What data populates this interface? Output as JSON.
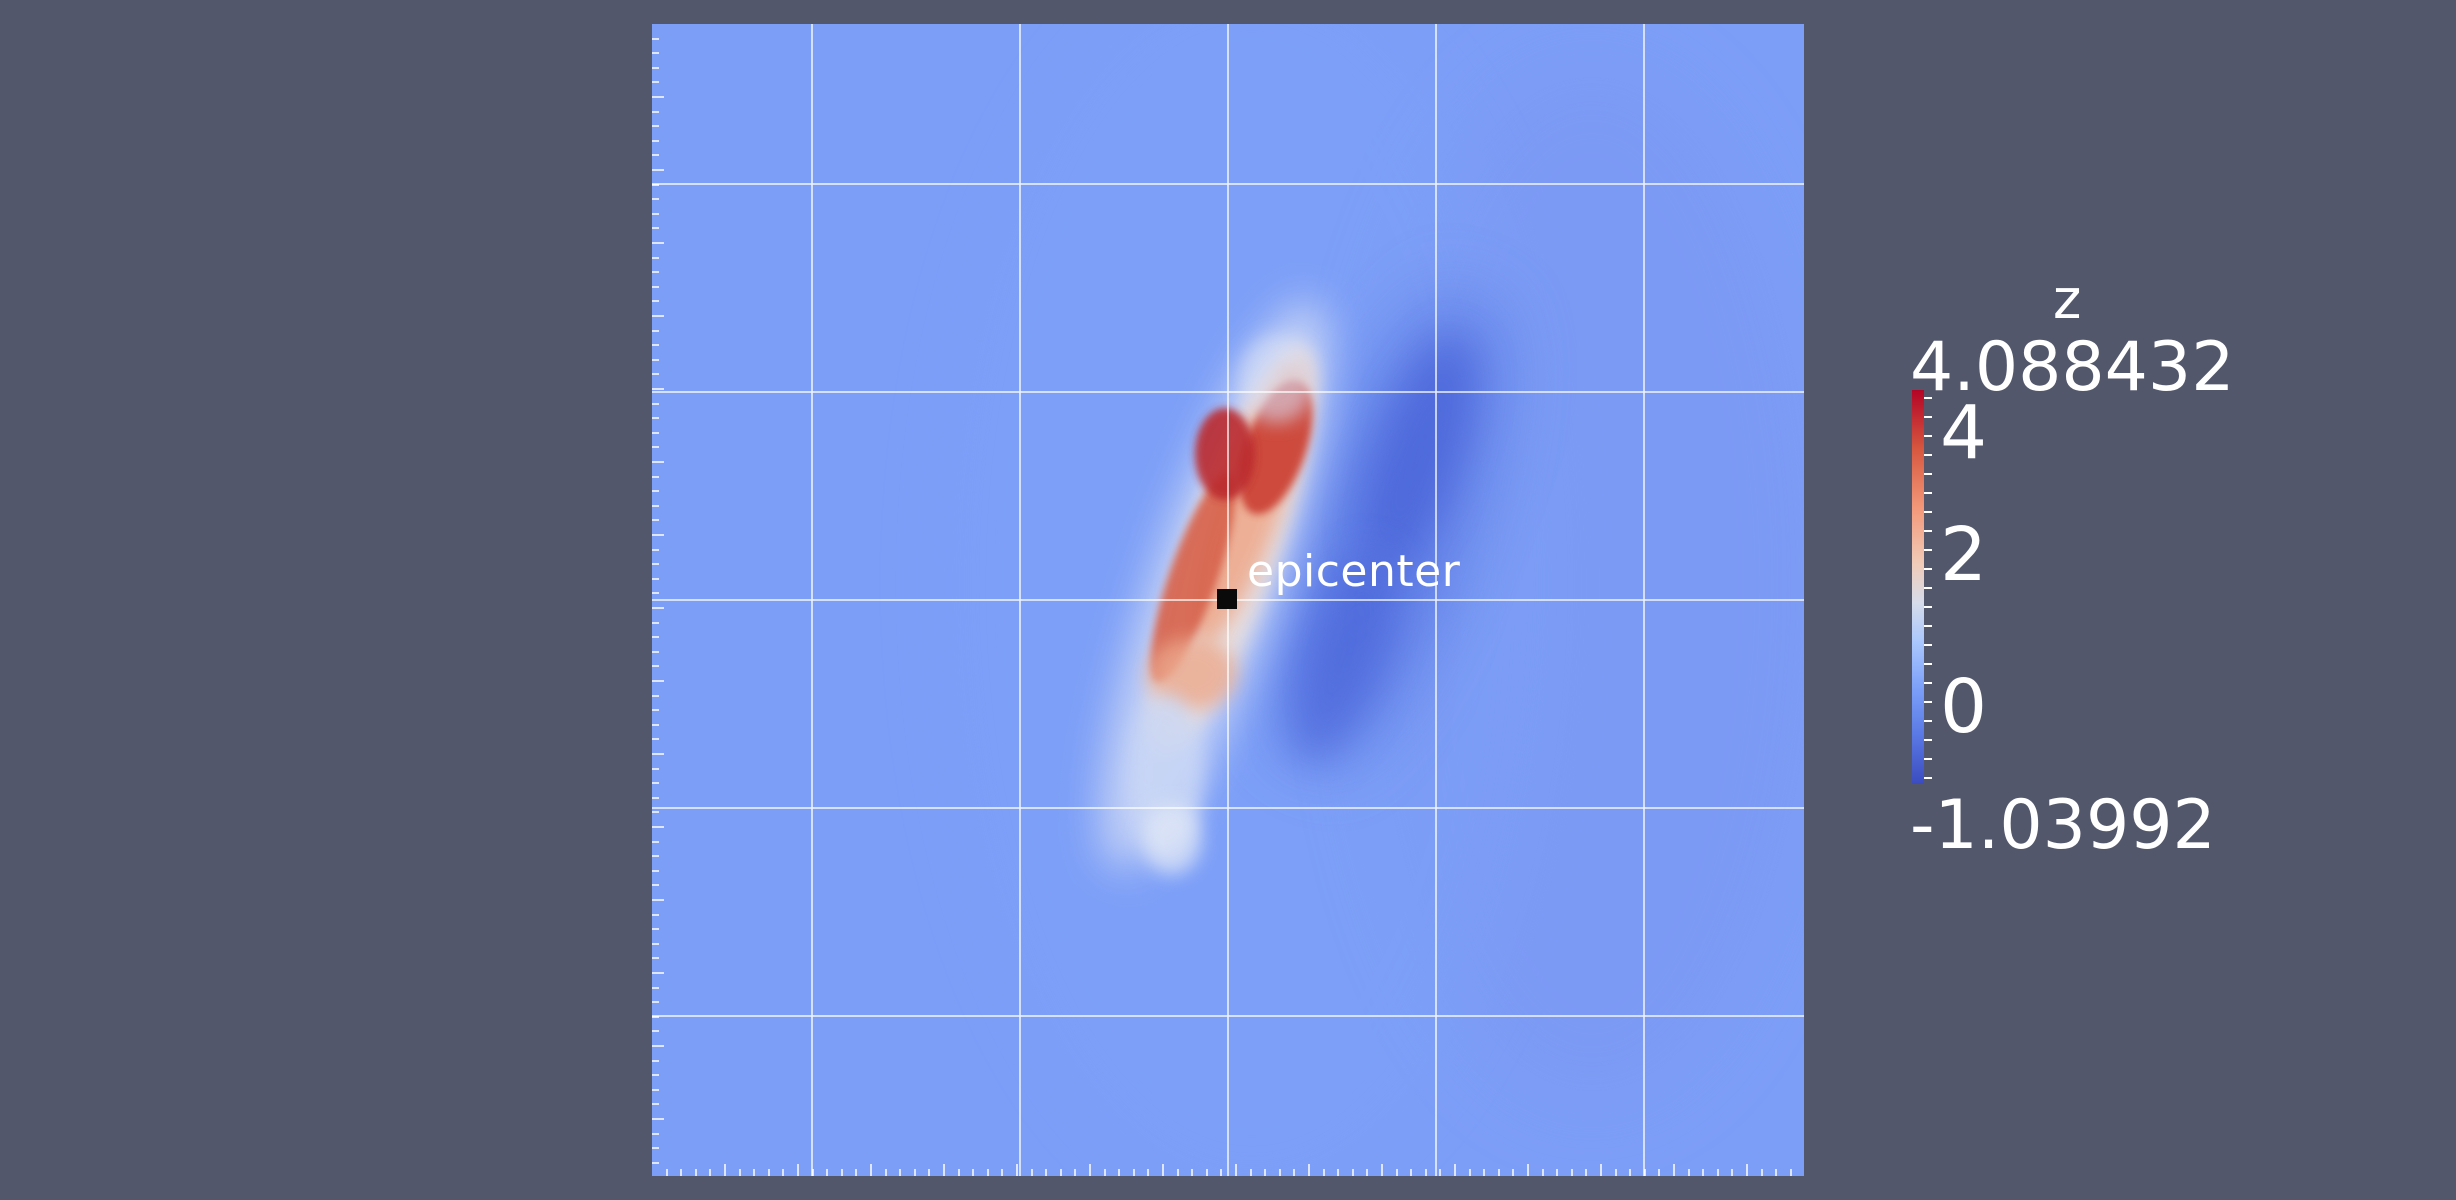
{
  "annotation": {
    "label": "epicenter"
  },
  "color_legend": {
    "title": "z",
    "max_label": "4.088432",
    "min_label": "-1.03992",
    "tick_labels": [
      "4",
      "2",
      "0"
    ],
    "range": [
      -1.03992,
      4.088432
    ],
    "colormap": "cool-to-warm",
    "colors": {
      "low": "#3b4cc0",
      "mid": "#dddddd",
      "high": "#b40426"
    }
  },
  "colors": {
    "background": "#52576b",
    "field_base": "#7d9ef7",
    "grid_lines": "#ffffff",
    "text": "#ffffff"
  }
}
